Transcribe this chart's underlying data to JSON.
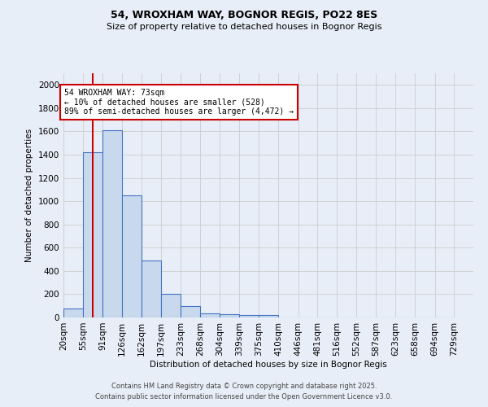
{
  "title1": "54, WROXHAM WAY, BOGNOR REGIS, PO22 8ES",
  "title2": "Size of property relative to detached houses in Bognor Regis",
  "xlabel": "Distribution of detached houses by size in Bognor Regis",
  "ylabel": "Number of detached properties",
  "bar_values": [
    80,
    1420,
    1610,
    1050,
    490,
    205,
    100,
    38,
    28,
    18,
    18,
    0,
    0,
    0,
    0,
    0,
    0,
    0,
    0,
    0
  ],
  "categories": [
    "20sqm",
    "55sqm",
    "91sqm",
    "126sqm",
    "162sqm",
    "197sqm",
    "233sqm",
    "268sqm",
    "304sqm",
    "339sqm",
    "375sqm",
    "410sqm",
    "446sqm",
    "481sqm",
    "516sqm",
    "552sqm",
    "587sqm",
    "623sqm",
    "658sqm",
    "694sqm",
    "729sqm"
  ],
  "bar_color": "#c9d9ed",
  "bar_edge_color": "#4472c4",
  "vline_x": 73,
  "vline_color": "#cc0000",
  "annotation_text": "54 WROXHAM WAY: 73sqm\n← 10% of detached houses are smaller (528)\n89% of semi-detached houses are larger (4,472) →",
  "annotation_box_color": "#ffffff",
  "annotation_box_edge": "#cc0000",
  "ylim": [
    0,
    2100
  ],
  "yticks": [
    0,
    200,
    400,
    600,
    800,
    1000,
    1200,
    1400,
    1600,
    1800,
    2000
  ],
  "grid_color": "#cccccc",
  "background_color": "#e8eef7",
  "footer1": "Contains HM Land Registry data © Crown copyright and database right 2025.",
  "footer2": "Contains public sector information licensed under the Open Government Licence v3.0.",
  "bin_edges": [
    20,
    55,
    91,
    126,
    162,
    197,
    233,
    268,
    304,
    339,
    375,
    410,
    446,
    481,
    516,
    552,
    587,
    623,
    658,
    694,
    729
  ]
}
